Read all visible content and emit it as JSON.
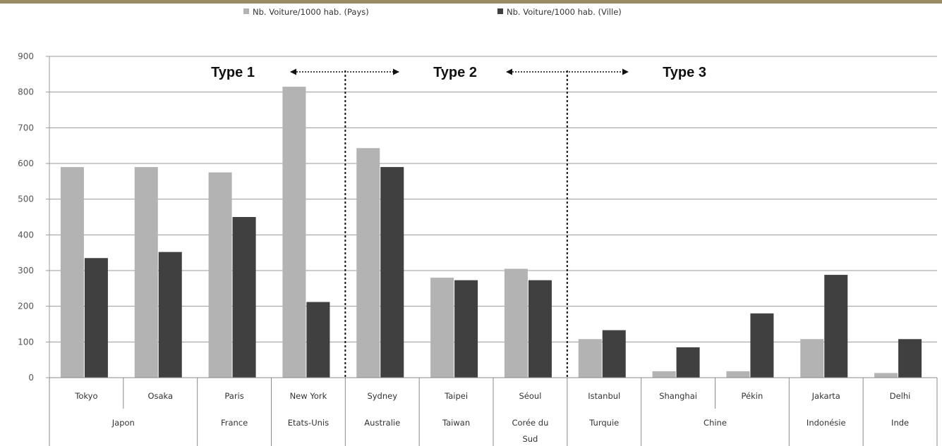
{
  "chart_data": {
    "type": "bar",
    "categories": [
      "Tokyo",
      "Osaka",
      "Paris",
      "New York",
      "Sydney",
      "Taipei",
      "Séoul",
      "Istanbul",
      "Shanghai",
      "Pékin",
      "Jakarta",
      "Delhi"
    ],
    "groups": [
      {
        "label": "Japon",
        "span": 2
      },
      {
        "label": "France",
        "span": 1
      },
      {
        "label": "Etats-Unis",
        "span": 1
      },
      {
        "label": "Australie",
        "span": 1
      },
      {
        "label": "Taiwan",
        "span": 1
      },
      {
        "label": "Corée du Sud",
        "span": 1
      },
      {
        "label": "Turquie",
        "span": 1
      },
      {
        "label": "Chine",
        "span": 2
      },
      {
        "label": "Indonésie",
        "span": 1
      },
      {
        "label": "Inde",
        "span": 1
      }
    ],
    "series": [
      {
        "name": "Nb. Voiture/1000 hab. (Pays)",
        "color": "#b3b3b3",
        "values": [
          590,
          590,
          575,
          815,
          643,
          280,
          305,
          108,
          18,
          18,
          108,
          13
        ]
      },
      {
        "name": "Nb. Voiture/1000 hab. (Ville)",
        "color": "#404040",
        "values": [
          335,
          352,
          450,
          212,
          590,
          273,
          273,
          133,
          85,
          180,
          288,
          108
        ]
      }
    ],
    "ylim": [
      0,
      900
    ],
    "yticks": [
      "0",
      "100",
      "200",
      "300",
      "400",
      "500",
      "600",
      "700",
      "800",
      "900"
    ],
    "grid": true,
    "legend_position": "top-center",
    "type_labels": [
      "Type 1",
      "Type 2",
      "Type 3"
    ],
    "type_boundaries_after_index": [
      3,
      6
    ]
  }
}
